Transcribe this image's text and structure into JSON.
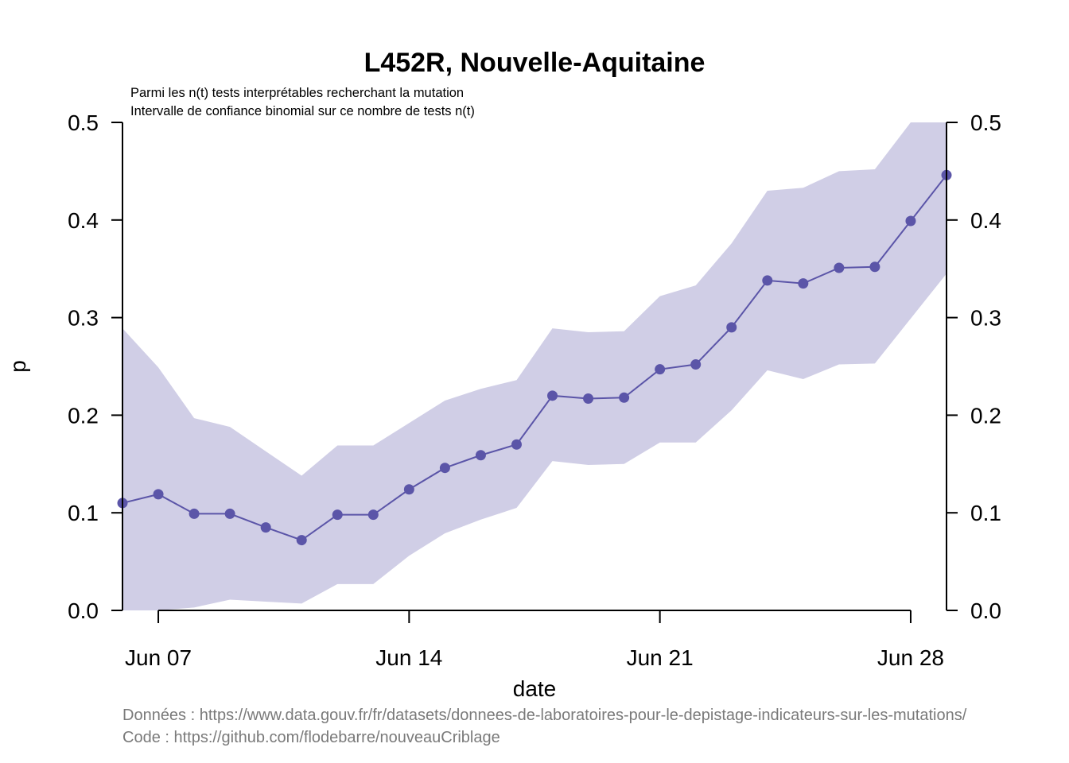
{
  "chart_data": {
    "type": "line",
    "title": "L452R, Nouvelle-Aquitaine",
    "subtitle_lines": [
      "Parmi les n(t) tests interprétables recherchant la mutation",
      "Intervalle de confiance binomial sur ce nombre de tests n(t)"
    ],
    "xlabel": "date",
    "ylabel": "p",
    "x": [
      "2021-06-06",
      "2021-06-07",
      "2021-06-08",
      "2021-06-09",
      "2021-06-10",
      "2021-06-11",
      "2021-06-12",
      "2021-06-13",
      "2021-06-14",
      "2021-06-15",
      "2021-06-16",
      "2021-06-17",
      "2021-06-18",
      "2021-06-19",
      "2021-06-20",
      "2021-06-21",
      "2021-06-22",
      "2021-06-23",
      "2021-06-24",
      "2021-06-25",
      "2021-06-26",
      "2021-06-27",
      "2021-06-28",
      "2021-06-29"
    ],
    "series": [
      {
        "values": [
          0.11,
          0.119,
          0.099,
          0.099,
          0.085,
          0.072,
          0.098,
          0.098,
          0.124,
          0.146,
          0.159,
          0.17,
          0.22,
          0.217,
          0.218,
          0.247,
          0.252,
          0.29,
          0.338,
          0.335,
          0.351,
          0.352,
          0.399,
          0.446
        ],
        "ci_lower": [
          0.0,
          0.0,
          0.003,
          0.011,
          0.009,
          0.007,
          0.027,
          0.027,
          0.056,
          0.079,
          0.093,
          0.105,
          0.153,
          0.149,
          0.15,
          0.172,
          0.172,
          0.205,
          0.246,
          0.237,
          0.252,
          0.253,
          0.299,
          0.345
        ],
        "ci_upper": [
          0.289,
          0.249,
          0.197,
          0.188,
          0.163,
          0.138,
          0.169,
          0.169,
          0.192,
          0.215,
          0.227,
          0.236,
          0.289,
          0.285,
          0.286,
          0.322,
          0.333,
          0.376,
          0.43,
          0.433,
          0.45,
          0.452,
          0.5,
          0.5
        ]
      }
    ],
    "ylim": [
      0,
      0.5
    ],
    "y_ticks": [
      "0.0",
      "0.1",
      "0.2",
      "0.3",
      "0.4",
      "0.5"
    ],
    "x_ticks": [
      {
        "date": "2021-06-07",
        "label": "Jun 07"
      },
      {
        "date": "2021-06-14",
        "label": "Jun 14"
      },
      {
        "date": "2021-06-21",
        "label": "Jun 21"
      },
      {
        "date": "2021-06-28",
        "label": "Jun 28"
      }
    ],
    "grid": false,
    "right_axis": true,
    "colors": {
      "line": "#5b55a8",
      "band": "#d0cee6"
    }
  },
  "footer": {
    "source_line": "Données : https://www.data.gouv.fr/fr/datasets/donnees-de-laboratoires-pour-le-depistage-indicateurs-sur-les-mutations/",
    "code_line": "Code : https://github.com/flodebarre/nouveauCriblage"
  }
}
